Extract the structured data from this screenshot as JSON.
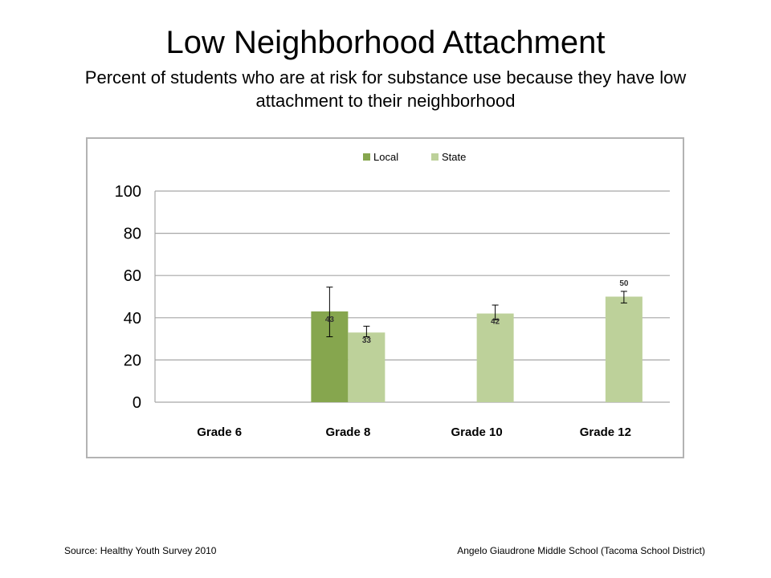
{
  "title": "Low Neighborhood Attachment",
  "subtitle": "Percent of students who are at risk for substance use because they have low attachment to their neighborhood",
  "footer": {
    "source": "Source: Healthy Youth Survey 2010",
    "school": "Angelo Giaudrone Middle School (Tacoma School District)"
  },
  "colors": {
    "local": "#86a64e",
    "state": "#bdd19a",
    "grid": "#a6a6a6",
    "frame": "#b3b3b3"
  },
  "chart_data": {
    "type": "bar",
    "title": "",
    "xlabel": "",
    "ylabel": "",
    "categories": [
      "Grade 6",
      "Grade 8",
      "Grade 10",
      "Grade 12"
    ],
    "ylim": [
      0,
      100
    ],
    "yticks": [
      0,
      20,
      40,
      60,
      80,
      100
    ],
    "grid": true,
    "legend_position": "top-center",
    "series": [
      {
        "name": "Local",
        "values": [
          null,
          43,
          null,
          null
        ],
        "labels": [
          null,
          "43",
          null,
          null
        ],
        "error_low": [
          null,
          31,
          null,
          null
        ],
        "error_high": [
          null,
          54.5,
          null,
          null
        ]
      },
      {
        "name": "State",
        "values": [
          null,
          33,
          42,
          50
        ],
        "labels": [
          null,
          "33",
          "42",
          "50"
        ],
        "error_low": [
          null,
          31,
          39,
          47
        ],
        "error_high": [
          null,
          36,
          46,
          52.5
        ]
      }
    ]
  }
}
